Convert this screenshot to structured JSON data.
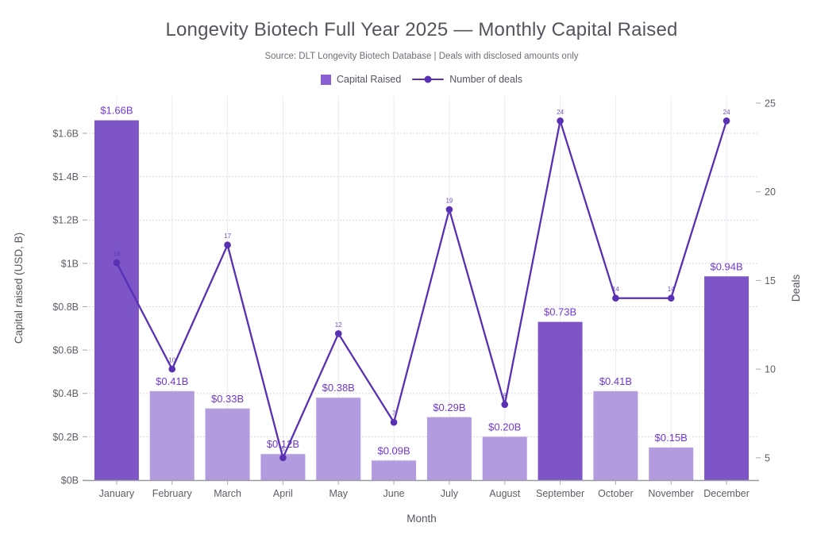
{
  "header": {
    "title": "Longevity Biotech Full Year 2025 — Monthly Capital Raised",
    "subtitle": "Source: DLT Longevity Biotech Database | Deals with disclosed amounts only"
  },
  "legend": {
    "bar_label": "Capital Raised",
    "line_label": "Number of deals"
  },
  "colors": {
    "bar_light": "#b39bdf",
    "bar_dark": "#7d55c7",
    "bar_top_dash": "#c6bcdc",
    "line": "#5930b3",
    "bar_value_label": "#7139d2",
    "point_label": "#5930b3",
    "legend_swatch": "#8a5fd3",
    "grid_vertical": "#ece9f5",
    "grid_horizontal": "#dbd5ec",
    "axis_line": "#9a9aa2",
    "tick_mark": "#a9a9b1",
    "tick_text": "#5d5d67",
    "axis_title_text": "#55555f",
    "title_text": "#54545d",
    "subtitle_text": "#6e6e79",
    "legend_text": "#55555f"
  },
  "chart_data": {
    "type": "bar+line",
    "title": "Longevity Biotech Full Year 2025 — Monthly Capital Raised",
    "subtitle": "Source: DLT Longevity Biotech Database | Deals with disclosed amounts only",
    "categories": [
      "January",
      "February",
      "March",
      "April",
      "May",
      "June",
      "July",
      "August",
      "September",
      "October",
      "November",
      "December"
    ],
    "series": [
      {
        "name": "Capital Raised",
        "type": "bar",
        "axis": "left",
        "unit": "USD billions",
        "values": [
          1.66,
          0.41,
          0.33,
          0.12,
          0.38,
          0.09,
          0.29,
          0.2,
          0.73,
          0.41,
          0.15,
          0.94
        ],
        "data_labels": [
          "$1.66B",
          "$0.41B",
          "$0.33B",
          "$0.12B",
          "$0.38B",
          "$0.09B",
          "$0.29B",
          "$0.20B",
          "$0.73B",
          "$0.41B",
          "$0.15B",
          "$0.94B"
        ],
        "highlight": [
          1,
          0,
          0,
          0,
          0,
          0,
          0,
          0,
          1,
          0,
          0,
          1
        ]
      },
      {
        "name": "Number of deals",
        "type": "line",
        "axis": "right",
        "values": [
          16,
          10,
          17,
          5,
          12,
          7,
          19,
          8,
          24,
          14,
          14,
          24
        ]
      }
    ],
    "xlabel": "Month",
    "ylabel_left": "Capital raised (USD, B)",
    "ylabel_right": "Deals",
    "y_left_tick_values": [
      0,
      0.2,
      0.4,
      0.6,
      0.8,
      1.0,
      1.2,
      1.4,
      1.6
    ],
    "y_left_tick_labels": [
      "$0B",
      "$0.2B",
      "$0.4B",
      "$0.6B",
      "$0.8B",
      "$1B",
      "$1.2B",
      "$1.4B",
      "$1.6B"
    ],
    "y_left_range": [
      0,
      1.772
    ],
    "y_right_tick_values": [
      5,
      10,
      15,
      20,
      25
    ],
    "y_right_range": [
      3.74,
      25.4
    ],
    "grid": true,
    "legend_position": "top-center"
  }
}
